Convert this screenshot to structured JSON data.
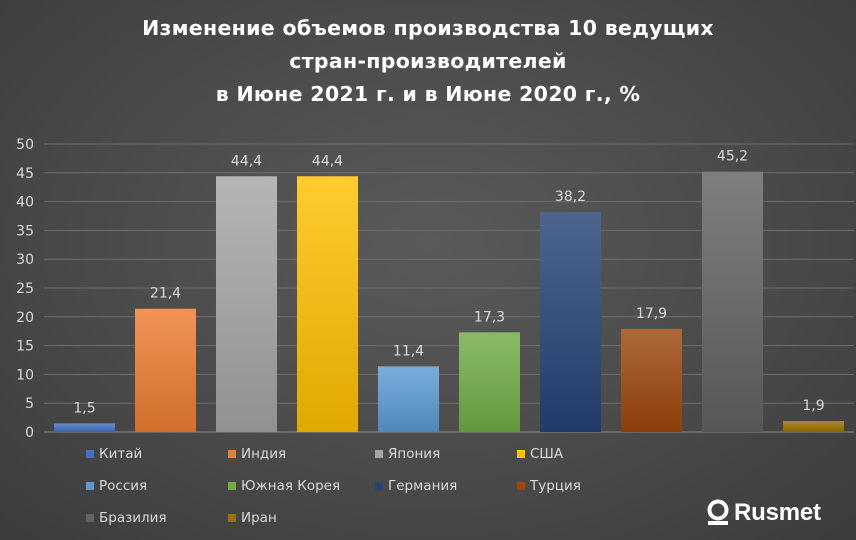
{
  "chart_data": {
    "type": "bar",
    "title": [
      "Изменение объемов производства 10 ведущих",
      "стран-производителей",
      "в Июне 2021 г. и в Июне 2020 г., %"
    ],
    "categories": [
      "Китай",
      "Индия",
      "Япония",
      "США",
      "Россия",
      "Южная Корея",
      "Германия",
      "Турция",
      "Бразилия",
      "Иран"
    ],
    "values": [
      1.5,
      21.4,
      44.4,
      44.4,
      11.4,
      17.3,
      38.2,
      17.9,
      45.2,
      1.9
    ],
    "data_labels": [
      "1,5",
      "21,4",
      "44,4",
      "44,4",
      "11,4",
      "17,3",
      "38,2",
      "17,9",
      "45,2",
      "1,9"
    ],
    "colors": [
      "#4472c4",
      "#ed7d31",
      "#a5a5a5",
      "#ffc000",
      "#5b9bd5",
      "#70ad47",
      "#264478",
      "#9e480e",
      "#636363",
      "#997300"
    ],
    "y_ticks": [
      0,
      5,
      10,
      15,
      20,
      25,
      30,
      35,
      40,
      45,
      50
    ],
    "ylim": [
      0,
      50
    ],
    "grid": true,
    "legend_position": "bottom",
    "xlabel": "",
    "ylabel": ""
  },
  "brand": {
    "name": "Rusmet"
  }
}
